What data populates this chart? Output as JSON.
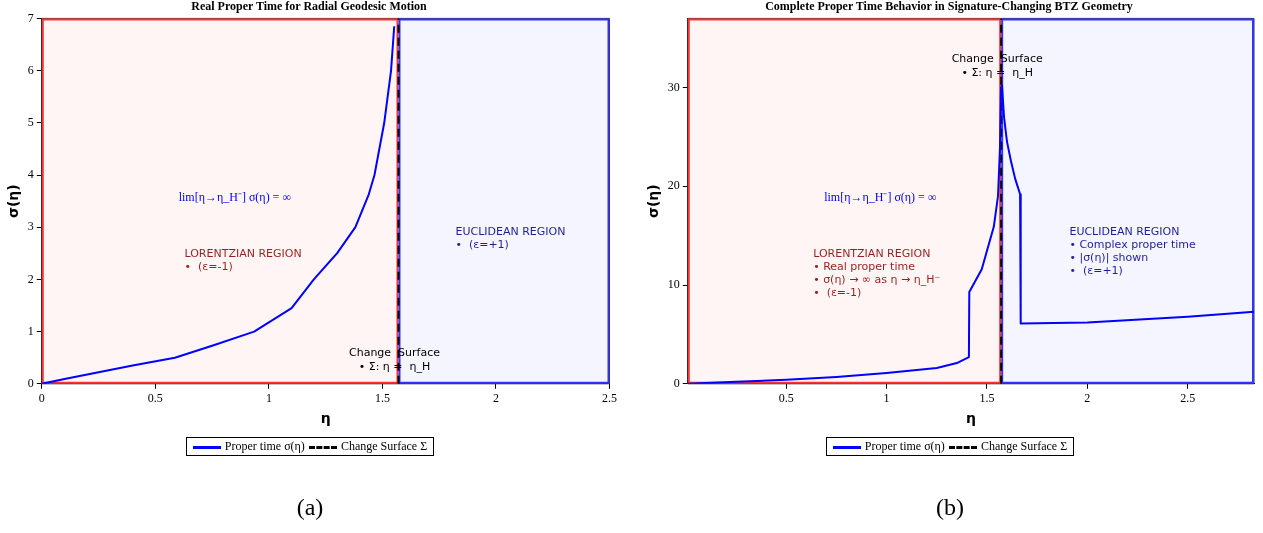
{
  "chart_data": [
    {
      "type": "line",
      "title": "Real Proper Time for Radial Geodesic Motion",
      "xlabel": "η",
      "ylabel": "σ(η)",
      "xlim": [
        0,
        2.5
      ],
      "xticks": [
        0,
        0.5,
        1,
        1.5,
        2,
        2.5
      ],
      "ylim": [
        0,
        7
      ],
      "yticks": [
        0,
        1,
        2,
        3,
        4,
        5,
        6,
        7
      ],
      "grid": false,
      "legend": "bottom",
      "marker": "none",
      "series": [
        {
          "name": "Proper time σ(η)",
          "color": "#0000ff",
          "x": [
            0,
            0.1,
            0.25,
            0.4,
            0.586,
            0.75,
            0.935,
            1.1,
            1.198,
            1.3,
            1.381,
            1.44,
            1.465,
            1.508,
            1.538,
            1.552
          ],
          "values": [
            0,
            0.09,
            0.22,
            0.35,
            0.5,
            0.73,
            1,
            1.45,
            2,
            2.5,
            3,
            3.63,
            4,
            5,
            6,
            6.85
          ]
        },
        {
          "name": "Change Surface Σ",
          "color": "#000000",
          "line_style": "dashed",
          "x": [
            1.5708,
            1.5708
          ],
          "values": [
            0,
            7
          ]
        }
      ],
      "bands": [
        {
          "axis": "x",
          "from": 0,
          "to": 1.5708,
          "color": "#ff3333",
          "label": "LORENTZIAN REGION\n•  (ε=-1)"
        },
        {
          "axis": "x",
          "from": 1.5708,
          "to": 2.5,
          "color": "#3333ff",
          "label": "EUCLIDEAN REGION\n•  (ε=+1)"
        }
      ],
      "annotations": [
        "lim[η→η_H⁻] σ(η) = ∞",
        {
          "text": "Change  Surface\n• Σ: η =  η_H",
          "x": 1.5708,
          "y": 0.45
        },
        "(a)"
      ]
    },
    {
      "type": "line",
      "title": "Complete Proper Time Behavior in Signature-Changing BTZ Geometry",
      "xlabel": "η",
      "ylabel": "σ(η)",
      "xlim": [
        0.01,
        2.83
      ],
      "xticks": [
        0.5,
        1,
        1.5,
        2,
        2.5
      ],
      "ylim": [
        0,
        37
      ],
      "yticks": [
        0,
        10,
        20,
        30
      ],
      "grid": false,
      "legend": "bottom",
      "marker": "none",
      "series": [
        {
          "name": "Proper time σ(η)",
          "color": "#0000ff",
          "x": [
            0.01,
            0.25,
            0.5,
            0.75,
            1,
            1.25,
            1.35,
            1.41,
            1.412,
            1.474,
            1.534,
            1.555,
            1.565,
            1.57,
            1.575,
            1.585,
            1.6,
            1.62,
            1.64,
            1.665,
            1.668,
            2,
            2.5,
            2.83
          ],
          "values": [
            0,
            0.2,
            0.4,
            0.7,
            1.1,
            1.6,
            2.1,
            2.7,
            9.3,
            11.6,
            15.9,
            19,
            24,
            30,
            30.2,
            27,
            24.5,
            22.5,
            20.8,
            19.2,
            6.1,
            6.2,
            6.8,
            7.3
          ]
        },
        {
          "name": "Change Surface Σ",
          "color": "#000000",
          "line_style": "dashed",
          "x": [
            1.5708,
            1.5708
          ],
          "values": [
            0,
            37
          ]
        }
      ],
      "bands": [
        {
          "axis": "x",
          "from": 0.01,
          "to": 1.5708,
          "color": "#ff3333",
          "label": "LORENTZIAN REGION\n• Real proper time\n• σ(η) → ∞ as η → η_H⁻\n•  (ε=-1)"
        },
        {
          "axis": "x",
          "from": 1.5708,
          "to": 2.83,
          "color": "#3333ff",
          "label": "EUCLIDEAN REGION\n• Complex proper time\n• |σ(η)| shown\n•  (ε=+1)"
        }
      ],
      "annotations": [
        "lim[η→η_H⁻] σ(η) = ∞",
        {
          "text": "Change  Surface\n• Σ: η =  η_H",
          "x": 1.5708,
          "y": 32.2
        },
        "(b)"
      ]
    }
  ]
}
